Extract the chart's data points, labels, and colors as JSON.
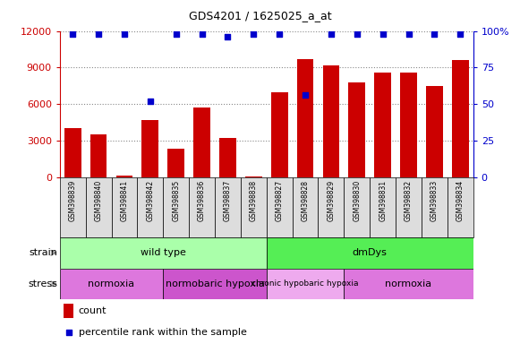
{
  "title": "GDS4201 / 1625025_a_at",
  "samples": [
    "GSM398839",
    "GSM398840",
    "GSM398841",
    "GSM398842",
    "GSM398835",
    "GSM398836",
    "GSM398837",
    "GSM398838",
    "GSM398827",
    "GSM398828",
    "GSM398829",
    "GSM398830",
    "GSM398831",
    "GSM398832",
    "GSM398833",
    "GSM398834"
  ],
  "counts": [
    4000,
    3500,
    120,
    4700,
    2300,
    5700,
    3200,
    80,
    7000,
    9700,
    9200,
    7800,
    8600,
    8600,
    7500,
    9600
  ],
  "percentile_y": [
    98,
    98,
    98,
    52,
    98,
    98,
    96,
    98,
    98,
    56,
    98,
    98,
    98,
    98,
    98,
    98
  ],
  "bar_color": "#cc0000",
  "dot_color": "#0000cc",
  "ylim_left": [
    0,
    12000
  ],
  "ylim_right": [
    0,
    100
  ],
  "yticks_left": [
    0,
    3000,
    6000,
    9000,
    12000
  ],
  "yticks_right": [
    0,
    25,
    50,
    75,
    100
  ],
  "yticklabels_right": [
    "0",
    "25",
    "50",
    "75",
    "100%"
  ],
  "strain_groups": [
    {
      "label": "wild type",
      "start": 0,
      "end": 8,
      "color": "#aaffaa"
    },
    {
      "label": "dmDys",
      "start": 8,
      "end": 16,
      "color": "#55ee55"
    }
  ],
  "stress_groups": [
    {
      "label": "normoxia",
      "start": 0,
      "end": 4,
      "color": "#dd77dd"
    },
    {
      "label": "normobaric hypoxia",
      "start": 4,
      "end": 8,
      "color": "#cc55cc"
    },
    {
      "label": "chronic hypobaric hypoxia",
      "start": 8,
      "end": 11,
      "color": "#eeaaee"
    },
    {
      "label": "normoxia",
      "start": 11,
      "end": 16,
      "color": "#dd77dd"
    }
  ],
  "grid_color": "#888888",
  "bg_color": "#ffffff",
  "tick_color_left": "#cc0000",
  "tick_color_right": "#0000cc",
  "n_samples": 16
}
